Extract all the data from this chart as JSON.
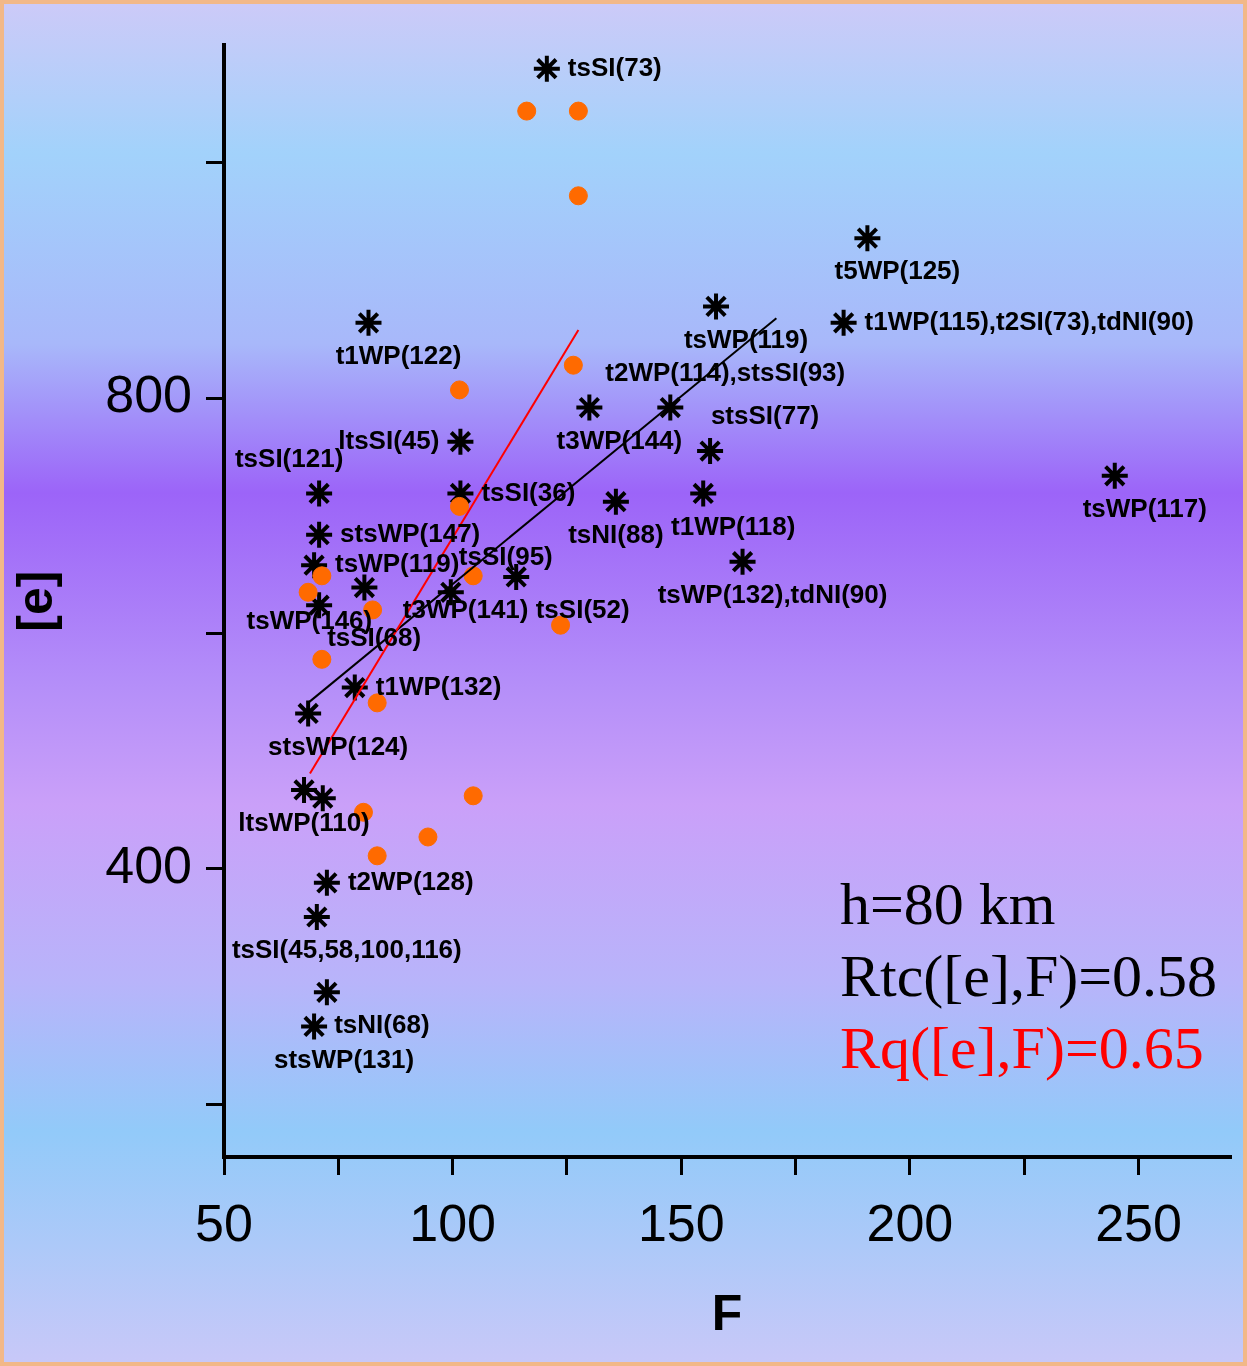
{
  "chart_data": {
    "type": "scatter",
    "xlabel": "F",
    "ylabel": "[e]",
    "xlim": [
      50,
      270
    ],
    "xticks": [
      50,
      {
        "value": 75,
        "label": null
      },
      100,
      {
        "value": 125,
        "label": null
      },
      150,
      {
        "value": 175,
        "label": null
      },
      200,
      {
        "value": 225,
        "label": null
      },
      250
    ],
    "ylim": [
      155,
      1100
    ],
    "yticks": [
      {
        "value": 200,
        "label": null
      },
      400,
      {
        "value": 600,
        "label": null
      },
      800,
      {
        "value": 1000,
        "label": null
      }
    ],
    "grid": false,
    "legend": false,
    "series": [
      {
        "marker": "cross",
        "color": "#000000",
        "x": [
          120.6,
          190.7,
          81.6,
          157.6,
          185.5,
          129.9,
          147.6,
          156.3,
          101.7,
          154.8,
          244.8,
          70.8,
          101.7,
          135.7,
          70.8,
          69.7,
          163.4,
          113.9,
          99.6,
          80.7,
          70.8,
          78.6,
          68.4,
          67.5,
          71.6,
          72.5,
          70.3,
          72.5,
          69.7
        ],
        "values": [
          1080,
          936,
          864,
          878,
          864,
          792,
          792,
          755,
          763,
          719,
          734,
          719,
          719,
          712,
          684,
          658,
          661,
          648,
          635,
          639,
          624,
          554,
          532,
          467,
          460,
          388,
          359,
          295,
          266
        ],
        "value_labels": [
          "tsSI(73)",
          "t5WP(125)",
          "t1WP(122)",
          "tsWP(119)",
          "t1WP(115),t2SI(73),tdNI(90)",
          "t3WP(144)",
          "t2WP(114),stsSI(93)",
          "stsSI(77)",
          "ltsSI(45)",
          "t1WP(118)",
          "tsWP(117)",
          "tsSI(121)",
          "tsSI(36)",
          "tsNI(88)",
          "stsWP(147)",
          "tsWP(119)",
          "tsWP(132),tdNI(90)",
          "t3WP(141) tsSI(52)",
          "tsSI(95)",
          "tsWP(146)",
          "tsSI(68)",
          "t1WP(132)",
          "stsWP(124)",
          "ltsWP(110)",
          null,
          "t2WP(128)",
          "tsSI(45,58,100,116)",
          "tsNI(68)",
          "stsWP(131)"
        ]
      },
      {
        "marker": "circle",
        "color": "#ff6a00",
        "x": [
          116.2,
          127.5,
          127.5,
          126.4,
          101.5,
          101.5,
          104.5,
          71.4,
          68.4,
          82.5,
          123.6,
          71.4,
          83.5,
          104.5,
          80.5,
          94.6,
          83.5
        ],
        "values": [
          1044,
          1044,
          972,
          828,
          807,
          708,
          649,
          649,
          635,
          620,
          607,
          578,
          541,
          462,
          448,
          427,
          411
        ]
      },
      {
        "type": "line",
        "marker": "none",
        "color": "#000000",
        "x": [
          68.4,
          170.8
        ],
        "values": [
          541,
          868
        ]
      },
      {
        "type": "line",
        "marker": "none",
        "color": "#ff0000",
        "x": [
          68.8,
          127.5
        ],
        "values": [
          481,
          858
        ]
      }
    ],
    "annotations": [
      "h=80 km",
      "Rtc([e],F)=0.58",
      "Rq([e],F)=0.65"
    ]
  }
}
